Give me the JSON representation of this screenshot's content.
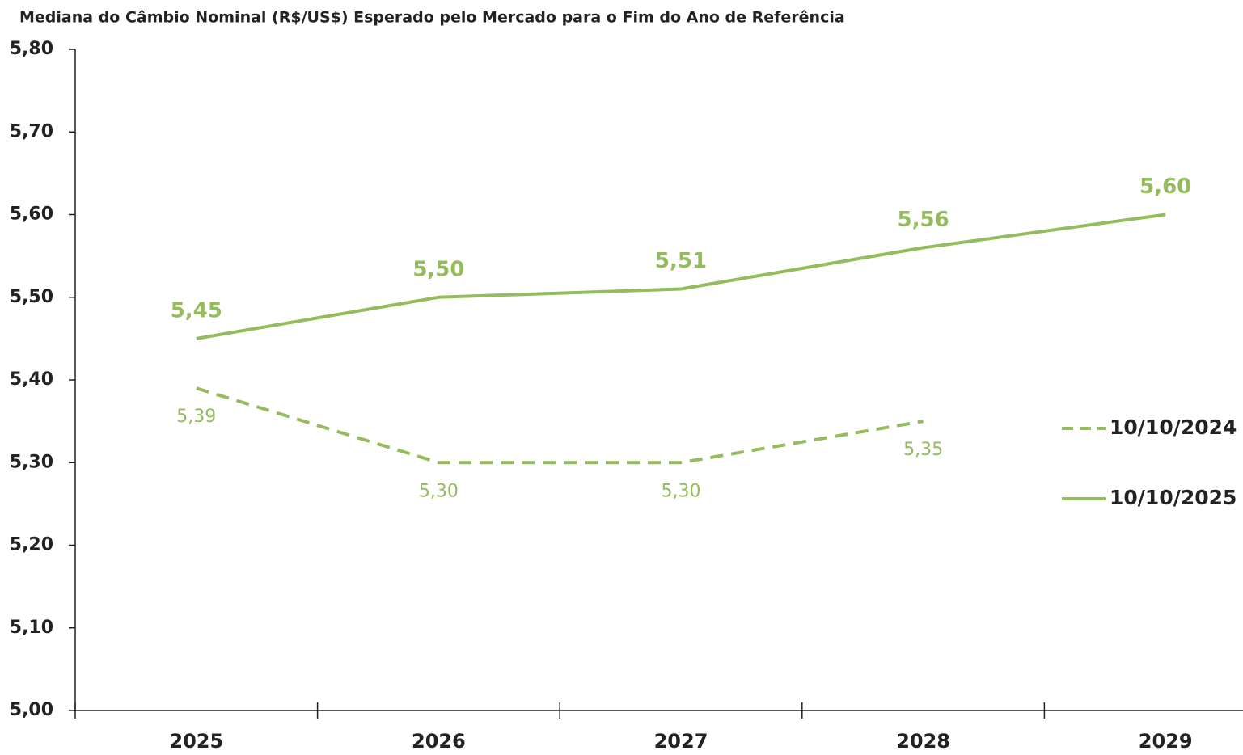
{
  "chart_data": {
    "type": "line",
    "title": "Mediana do Câmbio Nominal (R$/US$) Esperado pelo Mercado para o Fim do Ano de Referência",
    "categories": [
      "2025",
      "2026",
      "2027",
      "2028",
      "2029"
    ],
    "series": [
      {
        "name": "10/10/2024",
        "color": "#94bb5c",
        "dashed": true,
        "values": [
          5.39,
          5.3,
          5.3,
          5.35,
          null
        ],
        "value_labels": [
          "5,39",
          "5,30",
          "5,30",
          "5,35",
          null
        ]
      },
      {
        "name": "10/10/2025",
        "color": "#94bb5c",
        "dashed": false,
        "values": [
          5.45,
          5.5,
          5.51,
          5.56,
          5.6
        ],
        "value_labels": [
          "5,45",
          "5,50",
          "5,51",
          "5,56",
          "5,60"
        ]
      }
    ],
    "ylim": [
      5.0,
      5.8
    ],
    "yticks": [
      {
        "value": 5.0,
        "label": "5,00"
      },
      {
        "value": 5.1,
        "label": "5,10"
      },
      {
        "value": 5.2,
        "label": "5,20"
      },
      {
        "value": 5.3,
        "label": "5,30"
      },
      {
        "value": 5.4,
        "label": "5,40"
      },
      {
        "value": 5.5,
        "label": "5,50"
      },
      {
        "value": 5.6,
        "label": "5,60"
      },
      {
        "value": 5.7,
        "label": "5,70"
      },
      {
        "value": 5.8,
        "label": "5,80"
      }
    ],
    "grid": false,
    "legend": "right"
  }
}
